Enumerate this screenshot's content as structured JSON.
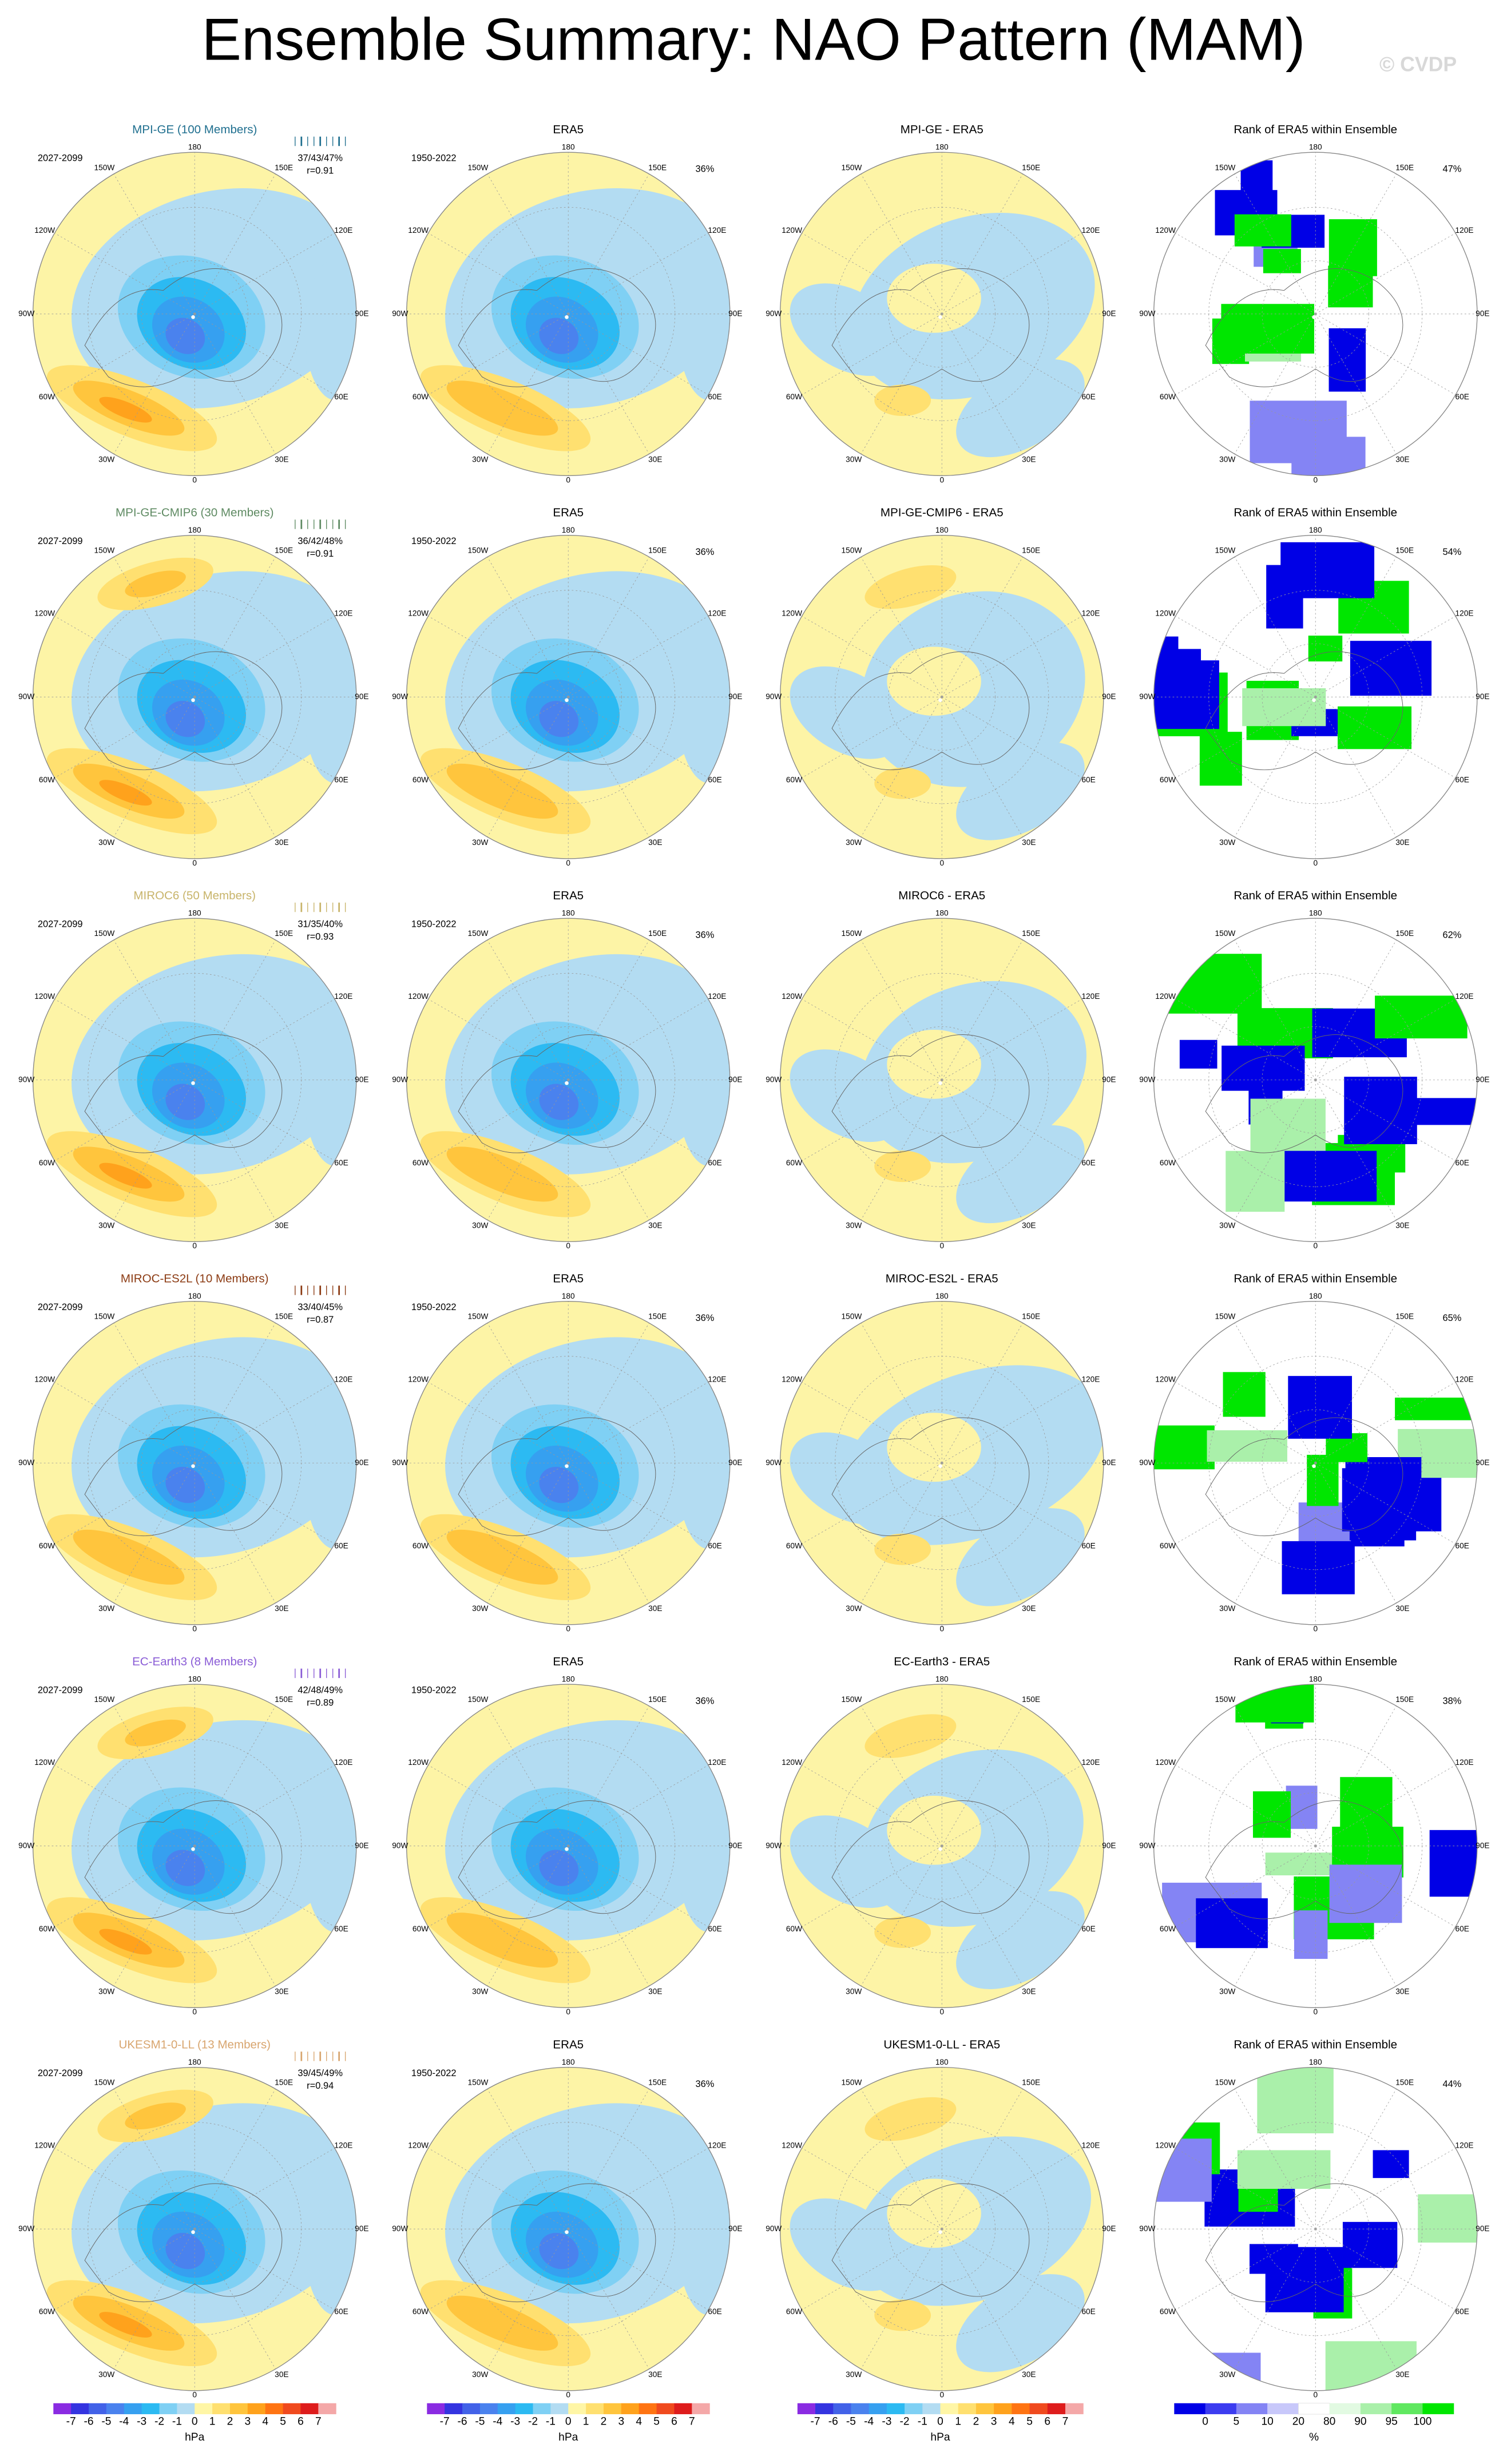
{
  "title": "Ensemble Summary: NAO Pattern (MAM)",
  "watermark": "© CVDP",
  "lon_labels": [
    "180",
    "150E",
    "120E",
    "90E",
    "60E",
    "30E",
    "0",
    "30W",
    "60W",
    "90W",
    "120W",
    "150W"
  ],
  "rows": [
    {
      "color": "#1f6f8f",
      "panels": [
        {
          "title": "MPI-GE (100 Members)",
          "period": "2027-2099",
          "stats": "37/43/47%",
          "corr": "r=0.91"
        },
        {
          "title": "ERA5",
          "period": "1950-2022",
          "pct": "36%"
        },
        {
          "title": "MPI-GE - ERA5"
        },
        {
          "title": "Rank of ERA5 within Ensemble",
          "pct": "47%"
        }
      ]
    },
    {
      "color": "#5e8a62",
      "panels": [
        {
          "title": "MPI-GE-CMIP6 (30 Members)",
          "period": "2027-2099",
          "stats": "36/42/48%",
          "corr": "r=0.91"
        },
        {
          "title": "ERA5",
          "period": "1950-2022",
          "pct": "36%"
        },
        {
          "title": "MPI-GE-CMIP6 - ERA5"
        },
        {
          "title": "Rank of ERA5 within Ensemble",
          "pct": "54%"
        }
      ]
    },
    {
      "color": "#c8b46a",
      "panels": [
        {
          "title": "MIROC6 (50 Members)",
          "period": "2027-2099",
          "stats": "31/35/40%",
          "corr": "r=0.93"
        },
        {
          "title": "ERA5",
          "period": "1950-2022",
          "pct": "36%"
        },
        {
          "title": "MIROC6 - ERA5"
        },
        {
          "title": "Rank of ERA5 within Ensemble",
          "pct": "62%"
        }
      ]
    },
    {
      "color": "#8b3a12",
      "panels": [
        {
          "title": "MIROC-ES2L (10 Members)",
          "period": "2027-2099",
          "stats": "33/40/45%",
          "corr": "r=0.87"
        },
        {
          "title": "ERA5",
          "period": "1950-2022",
          "pct": "36%"
        },
        {
          "title": "MIROC-ES2L - ERA5"
        },
        {
          "title": "Rank of ERA5 within Ensemble",
          "pct": "65%"
        }
      ]
    },
    {
      "color": "#8a5cd6",
      "panels": [
        {
          "title": "EC-Earth3 (8 Members)",
          "period": "2027-2099",
          "stats": "42/48/49%",
          "corr": "r=0.89"
        },
        {
          "title": "ERA5",
          "period": "1950-2022",
          "pct": "36%"
        },
        {
          "title": "EC-Earth3 - ERA5"
        },
        {
          "title": "Rank of ERA5 within Ensemble",
          "pct": "38%"
        }
      ]
    },
    {
      "color": "#d8a56e",
      "panels": [
        {
          "title": "UKESM1-0-LL (13 Members)",
          "period": "2027-2099",
          "stats": "39/45/49%",
          "corr": "r=0.94"
        },
        {
          "title": "ERA5",
          "period": "1950-2022",
          "pct": "36%"
        },
        {
          "title": "UKESM1-0-LL - ERA5"
        },
        {
          "title": "Rank of ERA5 within Ensemble",
          "pct": "44%"
        }
      ]
    }
  ],
  "colorbars": [
    {
      "colors": [
        "#8a2be2",
        "#3434e0",
        "#4262e8",
        "#4a82ee",
        "#36a0f0",
        "#2cbaf2",
        "#7fd0f4",
        "#b3dcf2",
        "#fff6a6",
        "#ffe070",
        "#ffc53d",
        "#ffa21c",
        "#ff7412",
        "#f04a1e",
        "#de1c1c",
        "#f4a8a8"
      ],
      "labels": [
        "-7",
        "-6",
        "-5",
        "-4",
        "-3",
        "-2",
        "-1",
        "0",
        "1",
        "2",
        "3",
        "4",
        "5",
        "6",
        "7"
      ],
      "units": "hPa"
    },
    {
      "colors": [
        "#8a2be2",
        "#3434e0",
        "#4262e8",
        "#4a82ee",
        "#36a0f0",
        "#2cbaf2",
        "#7fd0f4",
        "#b3dcf2",
        "#fff6a6",
        "#ffe070",
        "#ffc53d",
        "#ffa21c",
        "#ff7412",
        "#f04a1e",
        "#de1c1c",
        "#f4a8a8"
      ],
      "labels": [
        "-7",
        "-6",
        "-5",
        "-4",
        "-3",
        "-2",
        "-1",
        "0",
        "1",
        "2",
        "3",
        "4",
        "5",
        "6",
        "7"
      ],
      "units": "hPa"
    },
    {
      "colors": [
        "#8a2be2",
        "#3434e0",
        "#4262e8",
        "#4a82ee",
        "#36a0f0",
        "#2cbaf2",
        "#7fd0f4",
        "#b3dcf2",
        "#fff6a6",
        "#ffe070",
        "#ffc53d",
        "#ffa21c",
        "#ff7412",
        "#f04a1e",
        "#de1c1c",
        "#f4a8a8"
      ],
      "labels": [
        "-7",
        "-6",
        "-5",
        "-4",
        "-3",
        "-2",
        "-1",
        "0",
        "1",
        "2",
        "3",
        "4",
        "5",
        "6",
        "7"
      ],
      "units": "hPa"
    },
    {
      "colors": [
        "#0000e6",
        "#3c3cf0",
        "#8484f4",
        "#c8c8fa",
        "#ffffff",
        "#e2fae2",
        "#aaf0aa",
        "#60e860",
        "#00e600"
      ],
      "labels": [
        "0",
        "5",
        "10",
        "20",
        "80",
        "90",
        "95",
        "100"
      ],
      "units": "%"
    }
  ]
}
